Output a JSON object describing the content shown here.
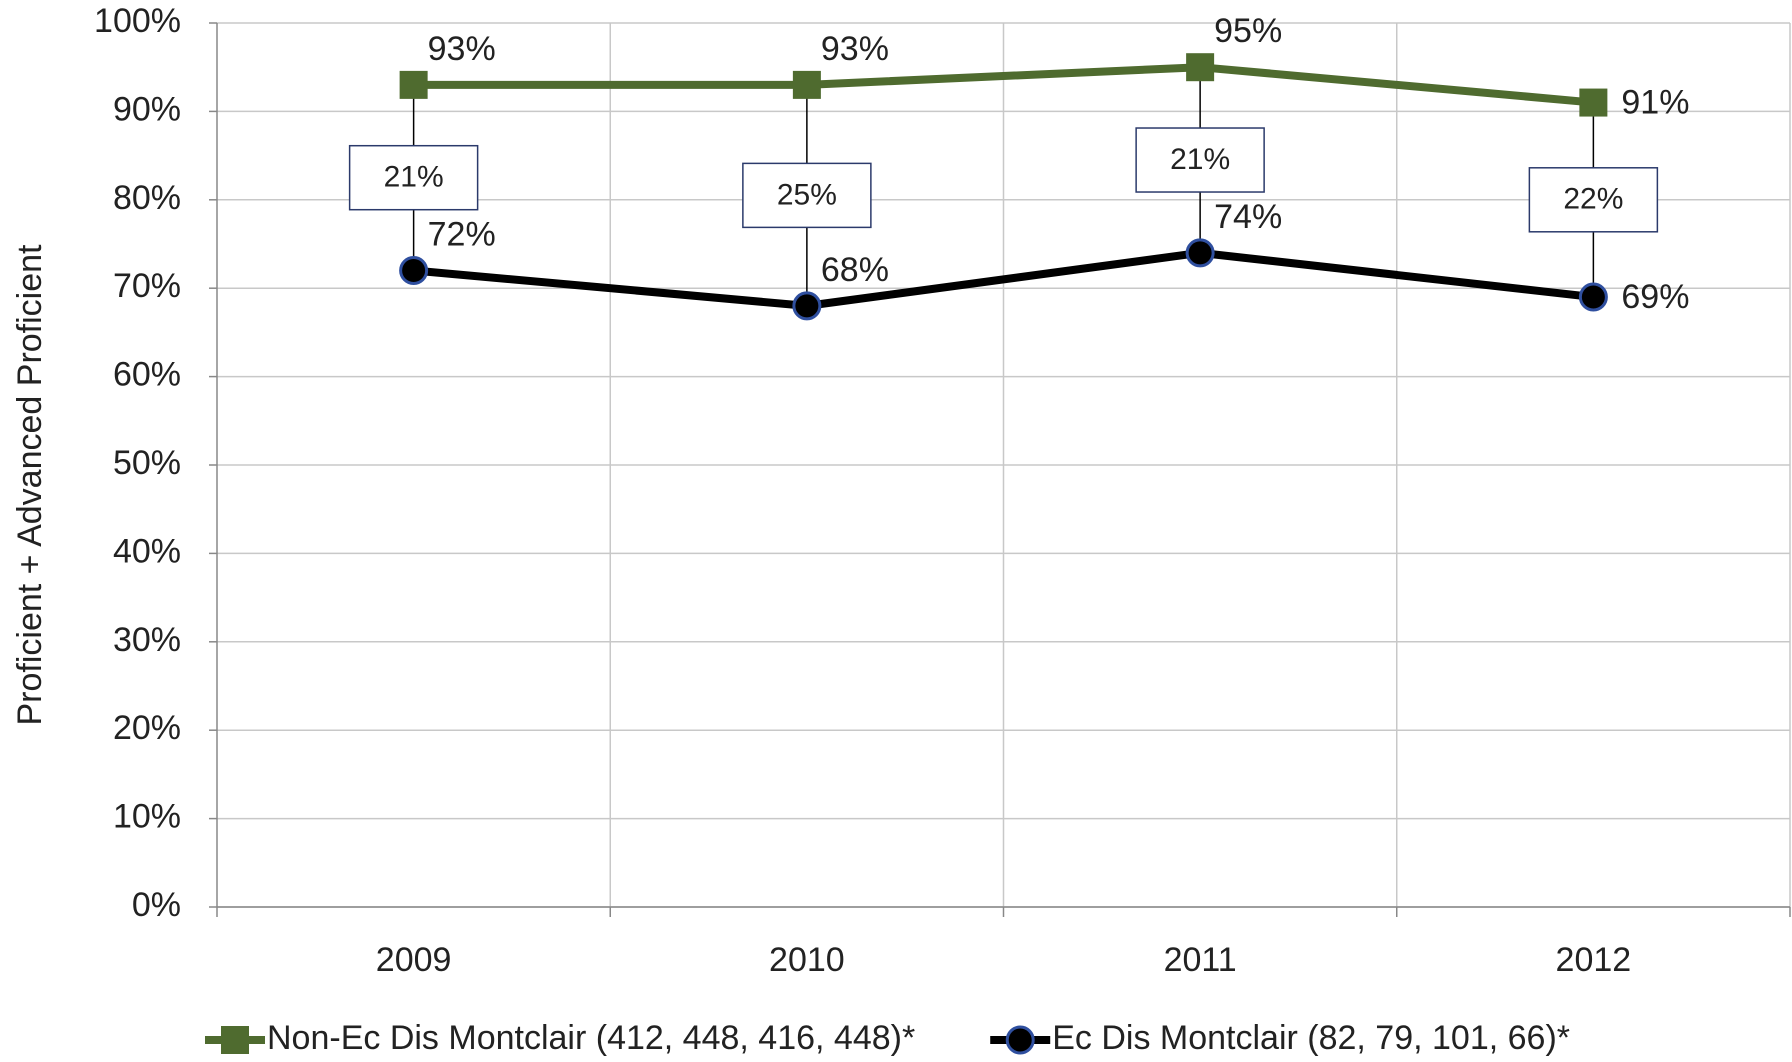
{
  "chart_data": {
    "type": "line",
    "y_label": "Proficient + Advanced Proficient",
    "categories": [
      "2009",
      "2010",
      "2011",
      "2012"
    ],
    "series": [
      {
        "name": "Non-Ec Dis Montclair (412, 448, 416, 448)*",
        "color": "#4f6b2f",
        "marker": "square",
        "values": [
          93,
          93,
          95,
          91
        ],
        "value_labels": [
          "93%",
          "93%",
          "95%",
          "91%"
        ]
      },
      {
        "name": "Ec Dis Montclair (82, 79, 101, 66)*",
        "color": "#000000",
        "marker": "circle",
        "values": [
          72,
          68,
          74,
          69
        ],
        "value_labels": [
          "72%",
          "68%",
          "74%",
          "69%"
        ]
      }
    ],
    "gaps": {
      "values": [
        21,
        25,
        21,
        22
      ],
      "value_labels": [
        "21%",
        "25%",
        "21%",
        "22%"
      ]
    },
    "ylim": [
      0,
      100
    ],
    "yticks": [
      {
        "value": 0,
        "label": "0%"
      },
      {
        "value": 10,
        "label": "10%"
      },
      {
        "value": 20,
        "label": "20%"
      },
      {
        "value": 30,
        "label": "30%"
      },
      {
        "value": 40,
        "label": "40%"
      },
      {
        "value": 50,
        "label": "50%"
      },
      {
        "value": 60,
        "label": "60%"
      },
      {
        "value": 70,
        "label": "70%"
      },
      {
        "value": 80,
        "label": "80%"
      },
      {
        "value": 90,
        "label": "90%"
      },
      {
        "value": 100,
        "label": "100%"
      }
    ],
    "grid": true,
    "legend": "bottom"
  }
}
